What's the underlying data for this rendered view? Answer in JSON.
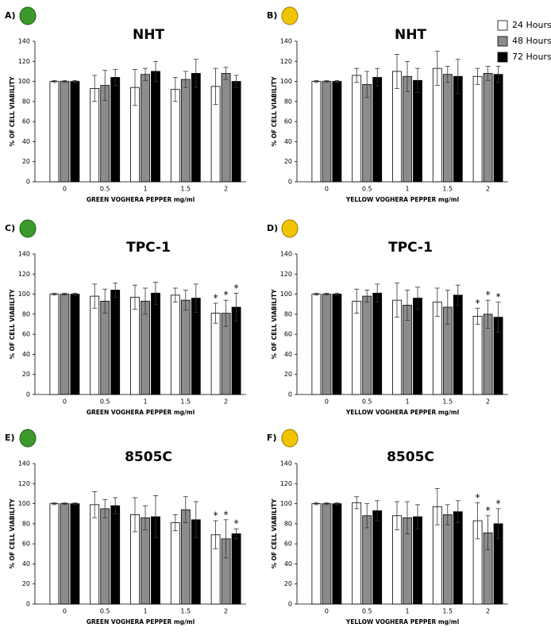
{
  "legend": [
    {
      "name": "24 Hours",
      "color": "#ffffff"
    },
    {
      "name": "48 Hours",
      "color": "#8c8c8c"
    },
    {
      "name": "72 Hours",
      "color": "#000000"
    }
  ],
  "chart_data": [
    {
      "type": "bar",
      "panel": "A)",
      "title": "NHT",
      "y_label": "% OF CELL VIABILITY",
      "x_label": "GREEN VOGHERA PEPPER mg/ml",
      "categories": [
        "0",
        "0.5",
        "1",
        "1.5",
        "2"
      ],
      "ylim": [
        0,
        140
      ],
      "yticks": [
        0,
        20,
        40,
        60,
        80,
        100,
        120,
        140
      ],
      "series": [
        {
          "values": [
            100,
            93,
            94,
            92,
            95
          ],
          "errors": [
            1,
            13,
            18,
            12,
            18
          ]
        },
        {
          "values": [
            100,
            96,
            107,
            102,
            108
          ],
          "errors": [
            1,
            15,
            6,
            8,
            6
          ]
        },
        {
          "values": [
            100,
            104,
            110,
            108,
            100
          ],
          "errors": [
            1,
            8,
            10,
            14,
            6
          ]
        }
      ]
    },
    {
      "type": "bar",
      "panel": "B)",
      "title": "NHT",
      "y_label": "% OF CELL VIABILITY",
      "x_label": "YELLOW VOGHERA PEPPER mg/ml",
      "categories": [
        "0",
        "0.5",
        "1",
        "1.5",
        "2"
      ],
      "ylim": [
        0,
        140
      ],
      "yticks": [
        0,
        20,
        40,
        60,
        80,
        100,
        120,
        140
      ],
      "series": [
        {
          "values": [
            100,
            106,
            110,
            113,
            105
          ],
          "errors": [
            1,
            7,
            17,
            17,
            8
          ]
        },
        {
          "values": [
            100,
            97,
            105,
            107,
            108
          ],
          "errors": [
            1,
            13,
            15,
            8,
            7
          ]
        },
        {
          "values": [
            100,
            104,
            101,
            105,
            107
          ],
          "errors": [
            1,
            9,
            12,
            17,
            8
          ]
        }
      ]
    },
    {
      "type": "bar",
      "panel": "C)",
      "title": "TPC-1",
      "y_label": "% OF CELL VIABILITY",
      "x_label": "GREEN VOGHERA PEPPER mg/ml",
      "categories": [
        "0",
        "0.5",
        "1",
        "1.5",
        "2"
      ],
      "ylim": [
        0,
        140
      ],
      "yticks": [
        0,
        20,
        40,
        60,
        80,
        100,
        120,
        140
      ],
      "series": [
        {
          "values": [
            100,
            98,
            97,
            99,
            81
          ],
          "errors": [
            1,
            12,
            12,
            7,
            10
          ],
          "labels": [
            null,
            null,
            null,
            null,
            "*"
          ]
        },
        {
          "values": [
            100,
            93,
            93,
            94,
            81
          ],
          "errors": [
            1,
            12,
            13,
            10,
            13
          ],
          "labels": [
            null,
            null,
            null,
            null,
            "*"
          ]
        },
        {
          "values": [
            100,
            104,
            101,
            96,
            87
          ],
          "errors": [
            1,
            7,
            11,
            14,
            14
          ],
          "labels": [
            null,
            null,
            null,
            null,
            "*"
          ]
        }
      ]
    },
    {
      "type": "bar",
      "panel": "D)",
      "title": "TPC-1",
      "y_label": "% OF CELL VIABILITY",
      "x_label": "YELLOW VOGHERA PEPPER mg/ml",
      "categories": [
        "0",
        "0.5",
        "1",
        "1.5",
        "2"
      ],
      "ylim": [
        0,
        140
      ],
      "yticks": [
        0,
        20,
        40,
        60,
        80,
        100,
        120,
        140
      ],
      "series": [
        {
          "values": [
            100,
            93,
            94,
            92,
            78
          ],
          "errors": [
            1,
            12,
            17,
            14,
            8
          ],
          "labels": [
            null,
            null,
            null,
            null,
            "*"
          ]
        },
        {
          "values": [
            100,
            98,
            89,
            87,
            80
          ],
          "errors": [
            1,
            6,
            15,
            17,
            14
          ],
          "labels": [
            null,
            null,
            null,
            null,
            "*"
          ]
        },
        {
          "values": [
            100,
            101,
            96,
            99,
            77
          ],
          "errors": [
            1,
            9,
            11,
            10,
            15
          ],
          "labels": [
            null,
            null,
            null,
            null,
            "*"
          ]
        }
      ]
    },
    {
      "type": "bar",
      "panel": "E)",
      "title": "8505C",
      "y_label": "% OF CELL VIABILITY",
      "x_label": "GREEN VOGHERA PEPPER mg/ml",
      "categories": [
        "0",
        "0.5",
        "1",
        "1.5",
        "2"
      ],
      "ylim": [
        0,
        140
      ],
      "yticks": [
        0,
        20,
        40,
        60,
        80,
        100,
        120,
        140
      ],
      "series": [
        {
          "values": [
            100,
            99,
            89,
            81,
            69
          ],
          "errors": [
            1,
            13,
            17,
            8,
            14
          ],
          "labels": [
            null,
            null,
            null,
            null,
            "*"
          ]
        },
        {
          "values": [
            100,
            95,
            86,
            94,
            65
          ],
          "errors": [
            1,
            9,
            12,
            13,
            19
          ],
          "labels": [
            null,
            null,
            null,
            null,
            "*"
          ]
        },
        {
          "values": [
            100,
            98,
            87,
            84,
            70
          ],
          "errors": [
            1,
            8,
            21,
            18,
            5
          ],
          "labels": [
            null,
            null,
            null,
            null,
            "*"
          ]
        }
      ]
    },
    {
      "type": "bar",
      "panel": "F)",
      "title": "8505C",
      "y_label": "% OF CELL VIABILITY",
      "x_label": "YELLOW VOGHERA PEPPER mg/ml",
      "categories": [
        "0",
        "0.5",
        "1",
        "1.5",
        "2"
      ],
      "ylim": [
        0,
        140
      ],
      "yticks": [
        0,
        20,
        40,
        60,
        80,
        100,
        120,
        140
      ],
      "series": [
        {
          "values": [
            100,
            101,
            88,
            97,
            83
          ],
          "errors": [
            1,
            6,
            14,
            18,
            18
          ],
          "labels": [
            null,
            null,
            null,
            null,
            "*"
          ]
        },
        {
          "values": [
            100,
            88,
            86,
            89,
            71
          ],
          "errors": [
            1,
            12,
            16,
            10,
            17
          ],
          "labels": [
            null,
            null,
            null,
            null,
            "*"
          ]
        },
        {
          "values": [
            100,
            93,
            87,
            92,
            80
          ],
          "errors": [
            1,
            10,
            12,
            11,
            15
          ],
          "labels": [
            null,
            null,
            null,
            null,
            "*"
          ]
        }
      ]
    }
  ]
}
